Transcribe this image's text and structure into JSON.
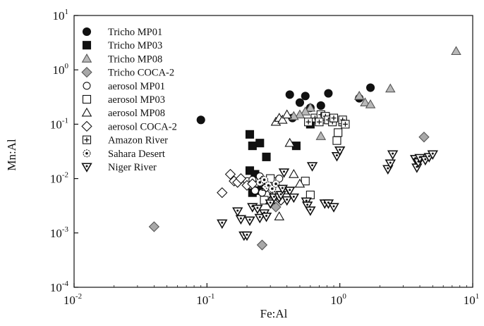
{
  "chart_data": {
    "type": "scatter",
    "x_scale": "log",
    "y_scale": "log",
    "xlabel": "Fe:Al",
    "ylabel": "Mn:Al",
    "xlim": [
      0.01,
      10
    ],
    "ylim": [
      0.0001,
      10
    ],
    "x_ticks": [
      {
        "base": "10",
        "exp": "-2",
        "value": 0.01
      },
      {
        "base": "10",
        "exp": "-1",
        "value": 0.1
      },
      {
        "base": "10",
        "exp": "0",
        "value": 1
      },
      {
        "base": "10",
        "exp": "1",
        "value": 10
      }
    ],
    "y_ticks": [
      {
        "base": "10",
        "exp": "-4",
        "value": 0.0001
      },
      {
        "base": "10",
        "exp": "-3",
        "value": 0.001
      },
      {
        "base": "10",
        "exp": "-2",
        "value": 0.01
      },
      {
        "base": "10",
        "exp": "-1",
        "value": 0.1
      },
      {
        "base": "10",
        "exp": "0",
        "value": 1
      },
      {
        "base": "10",
        "exp": "1",
        "value": 10
      }
    ],
    "grid": false,
    "legend_position": "top-left",
    "series": [
      {
        "name": "Tricho MP01",
        "marker": "circle-filled",
        "color": "#111111",
        "points": [
          [
            0.09,
            0.12
          ],
          [
            0.42,
            0.35
          ],
          [
            0.44,
            0.13
          ],
          [
            0.5,
            0.25
          ],
          [
            0.55,
            0.33
          ],
          [
            0.6,
            0.2
          ],
          [
            0.72,
            0.22
          ],
          [
            0.82,
            0.37
          ],
          [
            1.4,
            0.3
          ],
          [
            1.7,
            0.47
          ]
        ]
      },
      {
        "name": "Tricho MP03",
        "marker": "square-filled",
        "color": "#111111",
        "points": [
          [
            0.21,
            0.065
          ],
          [
            0.25,
            0.045
          ],
          [
            0.28,
            0.025
          ],
          [
            0.22,
            0.04
          ],
          [
            0.21,
            0.014
          ],
          [
            0.23,
            0.012
          ],
          [
            0.24,
            0.006
          ],
          [
            0.22,
            0.0055
          ],
          [
            0.26,
            0.007
          ],
          [
            0.47,
            0.04
          ],
          [
            0.6,
            0.1
          ]
        ]
      },
      {
        "name": "Tricho MP08",
        "marker": "triangle-up-filled",
        "color": "#b8b8b8",
        "points": [
          [
            7.5,
            2.2
          ],
          [
            2.4,
            0.45
          ],
          [
            1.4,
            0.33
          ],
          [
            1.55,
            0.25
          ],
          [
            1.7,
            0.23
          ],
          [
            0.6,
            0.2
          ],
          [
            0.55,
            0.17
          ],
          [
            0.5,
            0.15
          ],
          [
            0.7,
            0.12
          ],
          [
            0.72,
            0.06
          ],
          [
            0.45,
            0.14
          ]
        ]
      },
      {
        "name": "Tricho COCA-2",
        "marker": "diamond-filled",
        "color": "#a8a8a8",
        "points": [
          [
            0.04,
            0.0013
          ],
          [
            0.26,
            0.0006
          ],
          [
            4.3,
            0.058
          ],
          [
            0.33,
            0.003
          ]
        ]
      },
      {
        "name": "aerosol MP01",
        "marker": "circle-open",
        "color": "#111111",
        "points": [
          [
            0.2,
            0.009
          ],
          [
            0.22,
            0.0095
          ],
          [
            0.25,
            0.011
          ],
          [
            0.27,
            0.008
          ],
          [
            0.28,
            0.0075
          ],
          [
            0.3,
            0.0085
          ],
          [
            0.32,
            0.009
          ],
          [
            0.35,
            0.01
          ],
          [
            0.23,
            0.006
          ],
          [
            0.26,
            0.0055
          ]
        ]
      },
      {
        "name": "aerosol MP03",
        "marker": "square-open",
        "color": "#111111",
        "points": [
          [
            0.55,
            0.009
          ],
          [
            0.6,
            0.005
          ],
          [
            0.95,
            0.05
          ],
          [
            0.97,
            0.07
          ],
          [
            1.05,
            0.11
          ],
          [
            0.85,
            0.12
          ],
          [
            0.3,
            0.01
          ],
          [
            0.27,
            0.004
          ]
        ]
      },
      {
        "name": "aerosol MP08",
        "marker": "triangle-up-open",
        "color": "#111111",
        "points": [
          [
            0.33,
            0.11
          ],
          [
            0.35,
            0.13
          ],
          [
            0.37,
            0.12
          ],
          [
            0.4,
            0.15
          ],
          [
            0.42,
            0.045
          ],
          [
            0.45,
            0.012
          ],
          [
            0.5,
            0.008
          ],
          [
            0.3,
            0.004
          ],
          [
            0.32,
            0.005
          ],
          [
            0.35,
            0.002
          ],
          [
            0.28,
            0.007
          ],
          [
            0.38,
            0.006
          ]
        ]
      },
      {
        "name": "aerosol COCA-2",
        "marker": "diamond-open",
        "color": "#111111",
        "points": [
          [
            0.13,
            0.0055
          ],
          [
            0.15,
            0.012
          ],
          [
            0.16,
            0.009
          ],
          [
            0.17,
            0.0085
          ],
          [
            0.18,
            0.01
          ],
          [
            0.2,
            0.0075
          ],
          [
            0.22,
            0.008
          ],
          [
            0.26,
            0.009
          ],
          [
            0.3,
            0.0065
          ],
          [
            0.36,
            0.004
          ],
          [
            0.28,
            0.007
          ]
        ]
      },
      {
        "name": "Amazon River",
        "marker": "square-plus",
        "color": "#111111",
        "points": [
          [
            0.65,
            0.13
          ],
          [
            0.72,
            0.15
          ],
          [
            0.78,
            0.14
          ],
          [
            0.82,
            0.12
          ],
          [
            0.88,
            0.11
          ],
          [
            0.9,
            0.13
          ],
          [
            1.05,
            0.12
          ],
          [
            1.1,
            0.1
          ],
          [
            0.58,
            0.11
          ],
          [
            0.7,
            0.11
          ]
        ]
      },
      {
        "name": "Sahara Desert",
        "marker": "circle-dot",
        "color": "#111111",
        "points": [
          [
            0.25,
            0.0085
          ],
          [
            0.27,
            0.0095
          ],
          [
            0.29,
            0.0075
          ],
          [
            0.31,
            0.0065
          ],
          [
            0.33,
            0.008
          ]
        ]
      },
      {
        "name": "Niger River",
        "marker": "triangle-down-dot",
        "color": "#111111",
        "points": [
          [
            0.13,
            0.0015
          ],
          [
            0.17,
            0.0025
          ],
          [
            0.18,
            0.0018
          ],
          [
            0.19,
            0.0009
          ],
          [
            0.2,
            0.0009
          ],
          [
            0.21,
            0.0017
          ],
          [
            0.22,
            0.003
          ],
          [
            0.24,
            0.0028
          ],
          [
            0.25,
            0.0019
          ],
          [
            0.27,
            0.0023
          ],
          [
            0.28,
            0.002
          ],
          [
            0.3,
            0.0035
          ],
          [
            0.32,
            0.0045
          ],
          [
            0.35,
            0.0045
          ],
          [
            0.36,
            0.005
          ],
          [
            0.37,
            0.0065
          ],
          [
            0.4,
            0.004
          ],
          [
            0.42,
            0.006
          ],
          [
            0.45,
            0.0045
          ],
          [
            0.38,
            0.013
          ],
          [
            0.56,
            0.0038
          ],
          [
            0.57,
            0.0032
          ],
          [
            0.6,
            0.0026
          ],
          [
            0.62,
            0.017
          ],
          [
            0.77,
            0.0035
          ],
          [
            0.82,
            0.0035
          ],
          [
            0.9,
            0.003
          ],
          [
            0.95,
            0.026
          ],
          [
            1.0,
            0.033
          ],
          [
            2.3,
            0.015
          ],
          [
            2.4,
            0.019
          ],
          [
            2.5,
            0.028
          ],
          [
            3.7,
            0.023
          ],
          [
            3.8,
            0.016
          ],
          [
            3.9,
            0.02
          ],
          [
            4.0,
            0.024
          ],
          [
            4.4,
            0.022
          ],
          [
            4.7,
            0.025
          ],
          [
            5.0,
            0.028
          ]
        ]
      }
    ]
  }
}
